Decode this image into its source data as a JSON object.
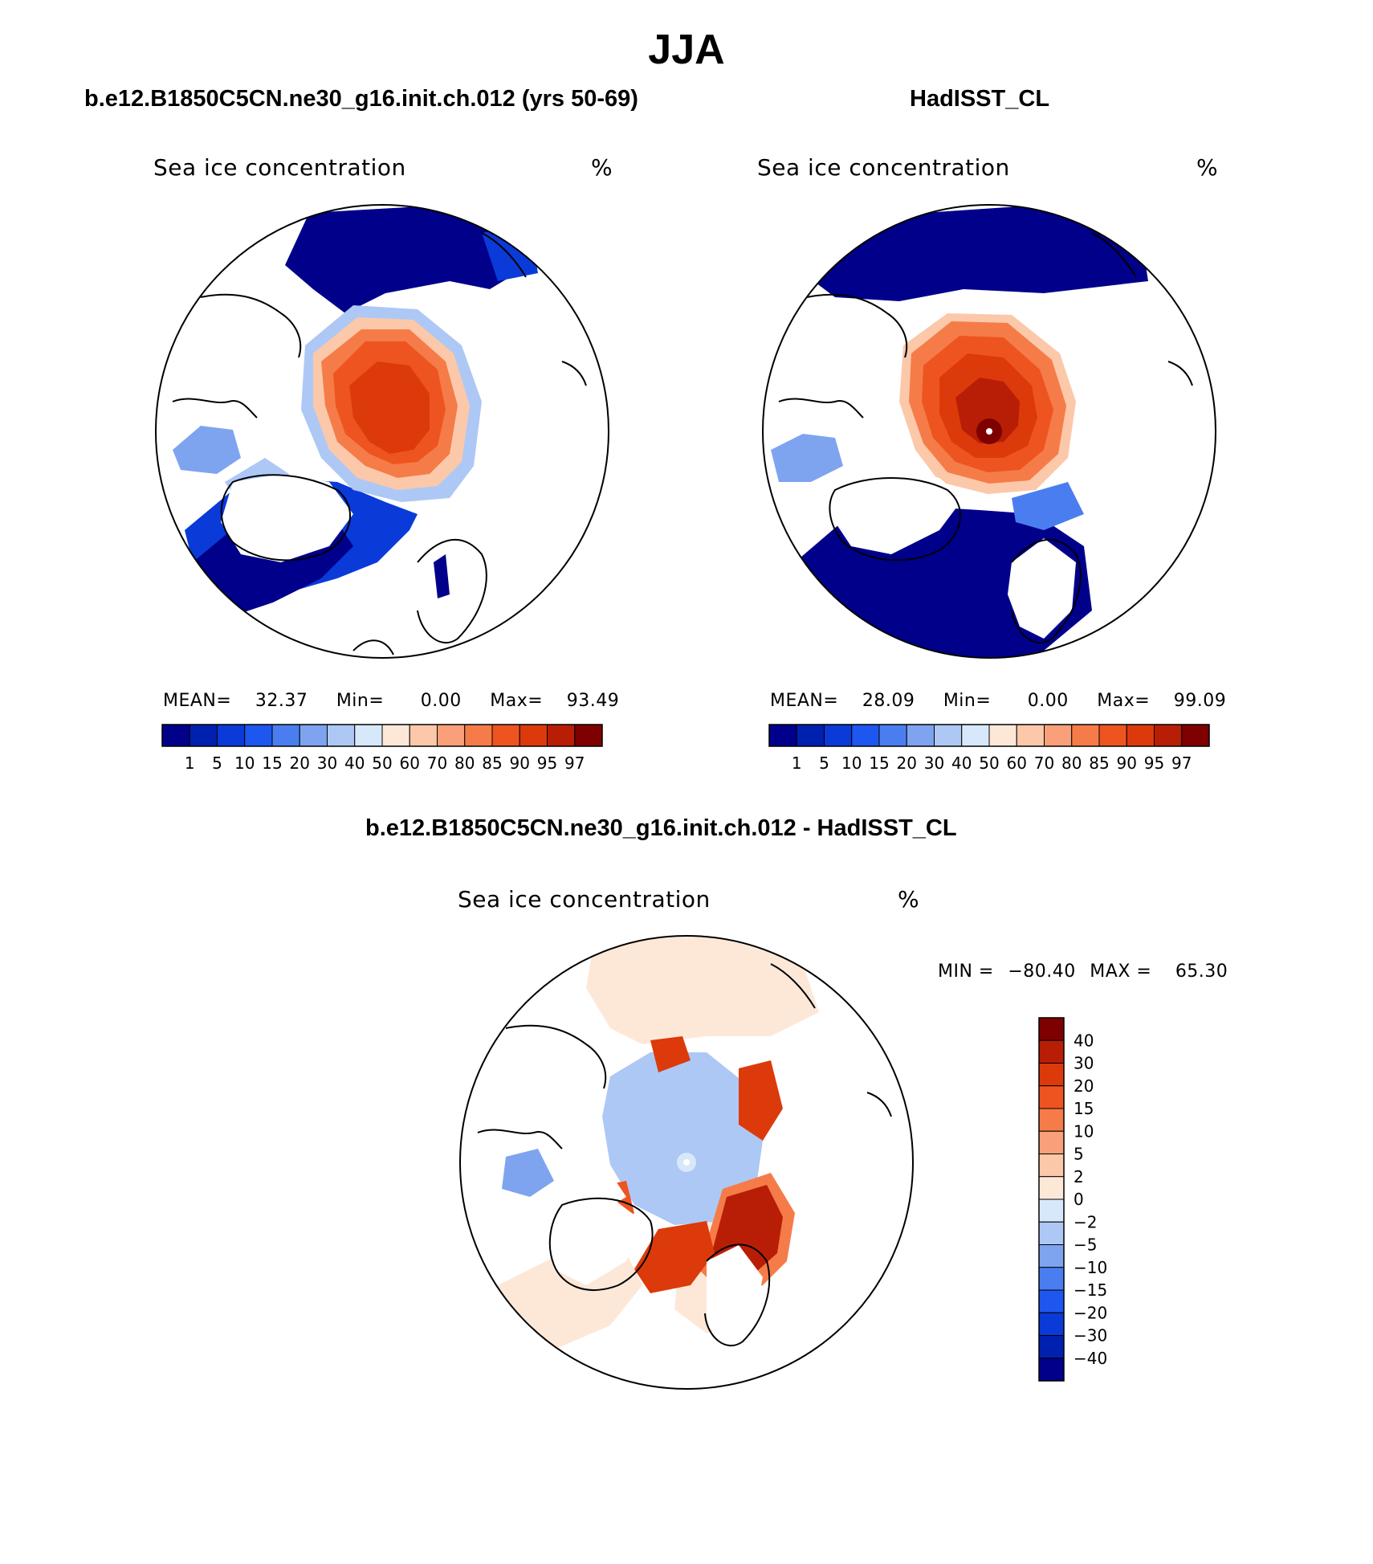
{
  "page": {
    "title": "JJA"
  },
  "panels": [
    {
      "id": "model",
      "case_title": "b.e12.B1850C5CN.ne30_g16.init.ch.012 (yrs 50-69)",
      "variable_label": "Sea ice concentration",
      "units": "%",
      "stats": {
        "mean_label": "MEAN=",
        "mean": "32.37",
        "min_label": "Min=",
        "min": "0.00",
        "max_label": "Max=",
        "max": "93.49"
      }
    },
    {
      "id": "obs",
      "case_title": "HadISST_CL",
      "variable_label": "Sea ice concentration",
      "units": "%",
      "stats": {
        "mean_label": "MEAN=",
        "mean": "28.09",
        "min_label": "Min=",
        "min": "0.00",
        "max_label": "Max=",
        "max": "99.09"
      }
    },
    {
      "id": "diff",
      "case_title": "b.e12.B1850C5CN.ne30_g16.init.ch.012 - HadISST_CL",
      "variable_label": "Sea ice concentration",
      "units": "%",
      "stats": {
        "min_label": "MIN =",
        "min": "−80.40",
        "max_label": "MAX =",
        "max": "65.30"
      }
    }
  ],
  "colorbars": {
    "concentration": {
      "tick_labels": [
        "1",
        "5",
        "10",
        "15",
        "20",
        "30",
        "40",
        "50",
        "60",
        "70",
        "80",
        "85",
        "90",
        "95",
        "97"
      ],
      "colors": [
        "#00008b",
        "#0020b0",
        "#0a3ad8",
        "#1e56f0",
        "#4a7ef0",
        "#7ea4f0",
        "#adc8f5",
        "#d8e8fb",
        "#fde8d8",
        "#fcc8aa",
        "#f9a07a",
        "#f57c48",
        "#ee5420",
        "#dd3a0c",
        "#b81e06",
        "#7e0000"
      ]
    },
    "difference": {
      "tick_labels": [
        "40",
        "30",
        "20",
        "15",
        "10",
        "5",
        "2",
        "0",
        "−2",
        "−5",
        "−10",
        "−15",
        "−20",
        "−30",
        "−40"
      ],
      "colors": [
        "#7e0000",
        "#b81e06",
        "#dd3a0c",
        "#ee5420",
        "#f57c48",
        "#f9a07a",
        "#fcc8aa",
        "#fde8d8",
        "#d8e8fb",
        "#adc8f5",
        "#7ea4f0",
        "#4a7ef0",
        "#1e56f0",
        "#0a3ad8",
        "#0020b0",
        "#00008b"
      ]
    }
  }
}
